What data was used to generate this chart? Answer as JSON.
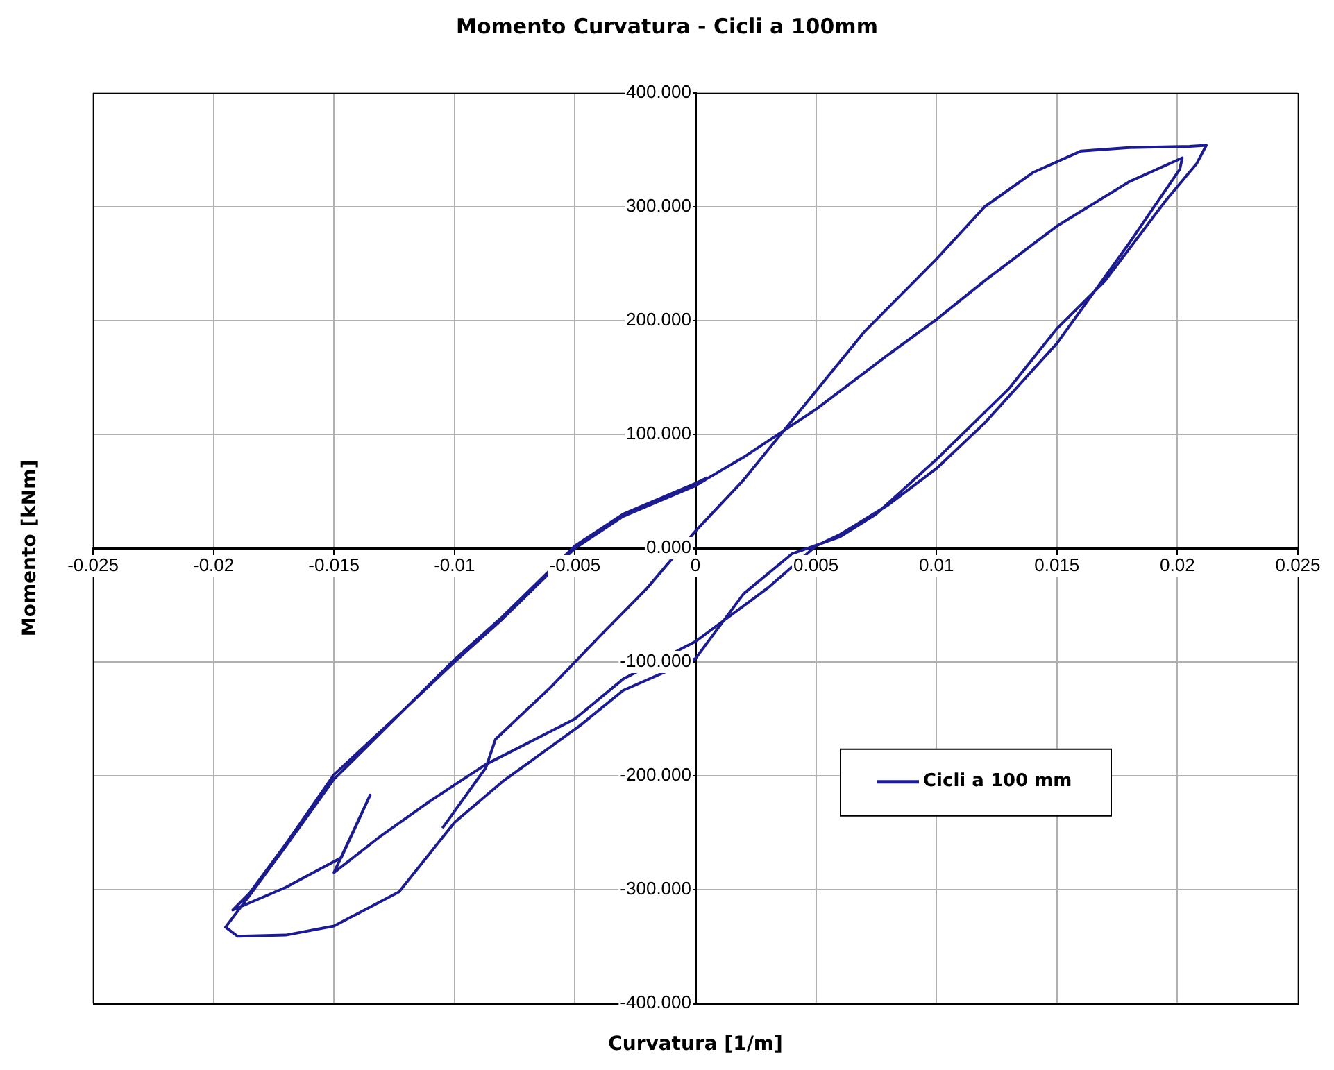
{
  "chart_data": {
    "type": "line",
    "title": "Momento Curvatura - Cicli a 100mm",
    "xlabel": "Curvatura [1/m]",
    "ylabel": "Momento [kNm]",
    "xlim": [
      -0.025,
      0.025
    ],
    "xticks": [
      -0.025,
      -0.02,
      -0.015,
      -0.01,
      -0.005,
      0,
      0.005,
      0.01,
      0.015,
      0.02,
      0.025
    ],
    "ylim": [
      -400,
      400
    ],
    "yticks": [
      {
        "value": -400,
        "label": "-400.000"
      },
      {
        "value": -300,
        "label": "-300.000"
      },
      {
        "value": -200,
        "label": "-200.000"
      },
      {
        "value": -100,
        "label": "-100.000"
      },
      {
        "value": 0,
        "label": "0.000"
      },
      {
        "value": 100,
        "label": "100.000"
      },
      {
        "value": 200,
        "label": "200.000"
      },
      {
        "value": 300,
        "label": "300.000"
      },
      {
        "value": 400,
        "label": "400.000"
      }
    ],
    "grid": true,
    "legend": "right",
    "marker": "none",
    "line_style": "solid",
    "series": [
      {
        "name": "Cicli a 100 mm",
        "color": "#1c1c8c",
        "x": [
          -0.0105,
          -0.0087,
          -0.0083,
          -0.006,
          -0.004,
          -0.002,
          0,
          0.002,
          0.004,
          0.007,
          0.01,
          0.012,
          0.014,
          0.016,
          0.018,
          0.0205,
          0.0212,
          0.0208,
          0.0195,
          0.017,
          0.015,
          0.013,
          0.01,
          0.0075,
          0.006,
          0.004,
          0.002,
          0,
          -0.003,
          -0.0048,
          -0.008,
          -0.01,
          -0.0123,
          -0.015,
          -0.017,
          -0.019,
          -0.0195,
          -0.0185,
          -0.017,
          -0.015,
          -0.012,
          -0.01,
          -0.008,
          -0.005,
          -0.003,
          0,
          0.002,
          0.005,
          0.008,
          0.01,
          0.012,
          0.015,
          0.018,
          0.0202,
          0.0201,
          0.018,
          0.015,
          0.012,
          0.01,
          0.008,
          0.006,
          0.005,
          0.003,
          0,
          -0.003,
          -0.005,
          -0.0087,
          -0.011,
          -0.013,
          -0.015,
          -0.0135,
          -0.0147,
          -0.017,
          -0.0192,
          -0.0185,
          -0.017,
          -0.015,
          -0.012,
          -0.01,
          -0.008,
          -0.005,
          -0.003,
          0,
          0.0005
        ],
        "values": [
          -246,
          -193,
          -168,
          -122,
          -78,
          -35,
          15,
          60,
          112,
          190,
          254,
          300,
          330,
          349,
          352,
          353,
          354,
          338,
          305,
          235,
          193,
          140,
          78,
          30,
          10,
          -5,
          -40,
          -97,
          -125,
          -156,
          -205,
          -241,
          -302,
          -332,
          -340,
          -341,
          -333,
          -305,
          -262,
          -203,
          -140,
          -100,
          -62,
          0,
          28,
          55,
          80,
          122,
          170,
          201,
          235,
          283,
          322,
          343,
          333,
          268,
          180,
          110,
          70,
          38,
          12,
          2,
          -35,
          -82,
          -115,
          -150,
          -190,
          -222,
          -252,
          -285,
          -217,
          -272,
          -298,
          -318,
          -303,
          -260,
          -199,
          -140,
          -98,
          -60,
          2,
          30,
          57,
          62
        ]
      }
    ]
  }
}
